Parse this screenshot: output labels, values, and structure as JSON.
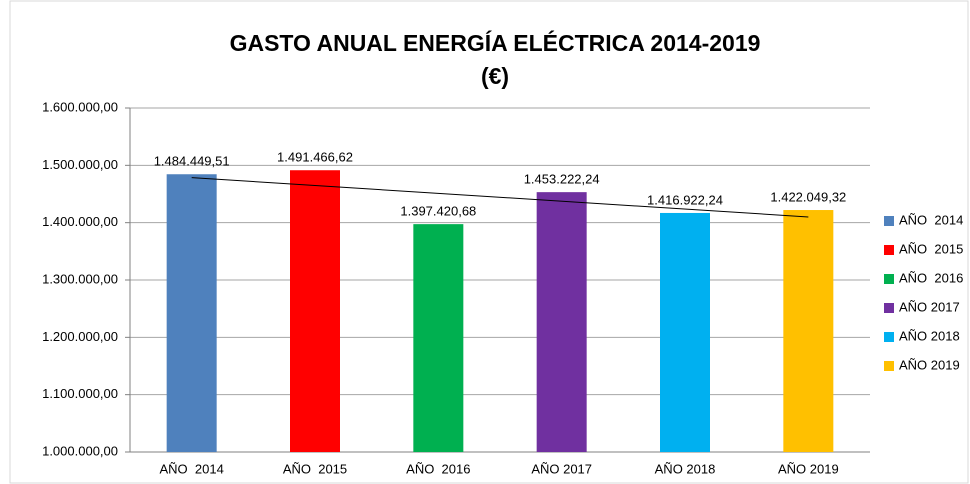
{
  "chart_data": {
    "type": "bar",
    "title": "GASTO ANUAL ENERGÍA ELÉCTRICA 2014-2019",
    "subtitle": "(€)",
    "categories": [
      "AÑO  2014",
      "AÑO  2015",
      "AÑO  2016",
      "AÑO 2017",
      "AÑO 2018",
      "AÑO 2019"
    ],
    "values": [
      1484449.51,
      1491466.62,
      1397420.68,
      1453222.24,
      1416922.24,
      1422049.32
    ],
    "value_labels": [
      "1.484.449,51",
      "1.491.466,62",
      "1.397.420,68",
      "1.453.222,24",
      "1.416.922,24",
      "1.422.049,32"
    ],
    "colors": [
      "#4f81bd",
      "#ff0000",
      "#00b050",
      "#7030a0",
      "#00b0f0",
      "#ffc000"
    ],
    "ylim": [
      1000000,
      1600000
    ],
    "yticks": [
      {
        "value": 1000000,
        "label": "1.000.000,00"
      },
      {
        "value": 1100000,
        "label": "1.100.000,00"
      },
      {
        "value": 1200000,
        "label": "1.200.000,00"
      },
      {
        "value": 1300000,
        "label": "1.300.000,00"
      },
      {
        "value": 1400000,
        "label": "1.400.000,00"
      },
      {
        "value": 1500000,
        "label": "1.500.000,00"
      },
      {
        "value": 1600000,
        "label": "1.600.000,00"
      }
    ],
    "grid": true,
    "legend": "right",
    "trendline": true
  }
}
